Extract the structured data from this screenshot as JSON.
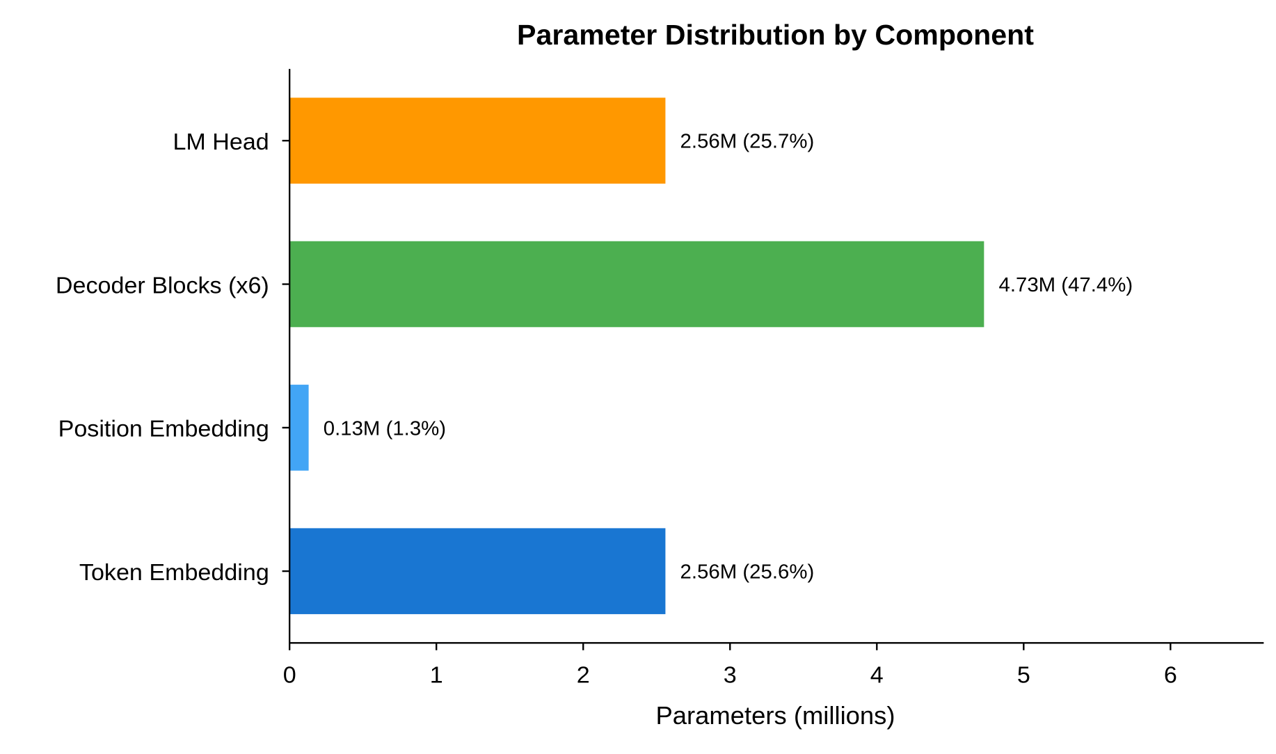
{
  "chart_data": {
    "type": "bar",
    "orientation": "horizontal",
    "title": "Parameter Distribution by Component",
    "xlabel": "Parameters (millions)",
    "ylabel": "",
    "categories": [
      "Token Embedding",
      "Position Embedding",
      "Decoder Blocks (x6)",
      "LM Head"
    ],
    "values": [
      2.56,
      0.13,
      4.73,
      2.56
    ],
    "data_labels": [
      "2.56M (25.6%)",
      "0.13M (1.3%)",
      "4.73M (47.4%)",
      "2.56M (25.7%)"
    ],
    "colors": [
      "#1976D2",
      "#42A5F5",
      "#4CAF50",
      "#FF9800"
    ],
    "xlim": [
      0,
      6.63
    ],
    "xticks": [
      "0",
      "1",
      "2",
      "3",
      "4",
      "5",
      "6"
    ],
    "grid": false
  }
}
